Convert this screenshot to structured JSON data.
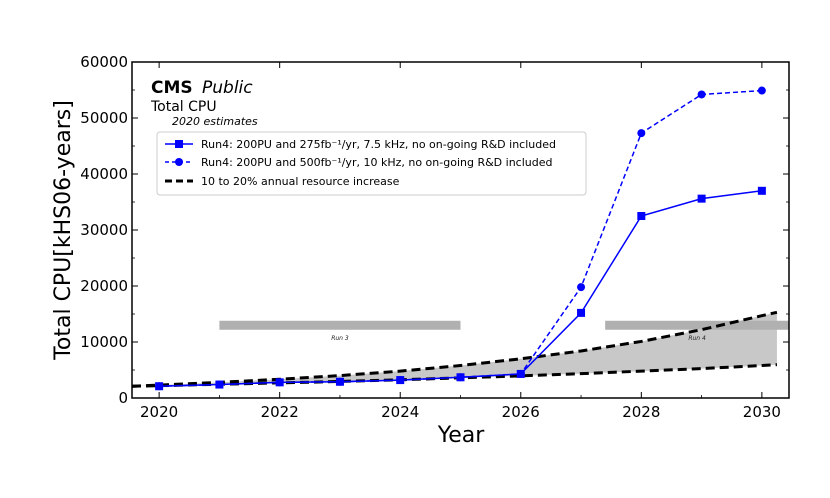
{
  "chart_data": {
    "type": "line",
    "title": "Total CPU",
    "brand": "CMS",
    "brand_qualifier": "Public",
    "subtitle": "2020 estimates",
    "xlabel": "Year",
    "ylabel": "Total CPU[kHS06-years]",
    "xlim": [
      2019.55,
      2030.45
    ],
    "ylim": [
      0,
      60000
    ],
    "xticks": [
      2020,
      2022,
      2024,
      2026,
      2028,
      2030
    ],
    "yticks": [
      0,
      10000,
      20000,
      30000,
      40000,
      50000,
      60000
    ],
    "legend_position": "upper-left",
    "series": [
      {
        "name": "Run4: 200PU and 275fb⁻¹/yr, 7.5 kHz, no on-going R&D included",
        "style": "solid",
        "marker": "square",
        "color": "#0000ff",
        "x": [
          2020,
          2021,
          2022,
          2023,
          2024,
          2025,
          2026,
          2027,
          2028,
          2029,
          2030
        ],
        "y": [
          2100,
          2400,
          2800,
          2900,
          3200,
          3700,
          4300,
          15200,
          32500,
          35600,
          37000
        ]
      },
      {
        "name": "Run4: 200PU and 500fb⁻¹/yr, 10 kHz, no on-going R&D included",
        "style": "dashed",
        "marker": "circle",
        "color": "#0000ff",
        "x": [
          2020,
          2021,
          2022,
          2023,
          2024,
          2025,
          2026,
          2027,
          2028,
          2029,
          2030
        ],
        "y": [
          2100,
          2400,
          2800,
          2900,
          3200,
          3700,
          4300,
          19800,
          47300,
          54200,
          54900
        ]
      },
      {
        "name": "10 to 20% annual resource increase",
        "style": "thick-dashed",
        "color": "#000000",
        "x": [
          2019.55,
          2020,
          2021,
          2022,
          2023,
          2024,
          2025,
          2026,
          2027,
          2028,
          2029,
          2030,
          2030.25
        ],
        "y_low": [
          2100,
          2200,
          2450,
          2700,
          2950,
          3250,
          3600,
          3950,
          4350,
          4800,
          5250,
          5800,
          5950
        ],
        "y_high": [
          2100,
          2300,
          2800,
          3350,
          4000,
          4800,
          5800,
          7000,
          8400,
          10100,
          12200,
          14700,
          15300
        ]
      }
    ],
    "shaded_region": {
      "label": "10 to 20% annual resource increase",
      "color": "#c8c8c8"
    },
    "annotations": [
      {
        "label": "Run 3",
        "x_start": 2021.0,
        "x_end": 2025.0,
        "y": 12900
      },
      {
        "label": "Run 4",
        "x_start": 2027.4,
        "x_end": 2030.45,
        "y": 12900
      }
    ]
  }
}
